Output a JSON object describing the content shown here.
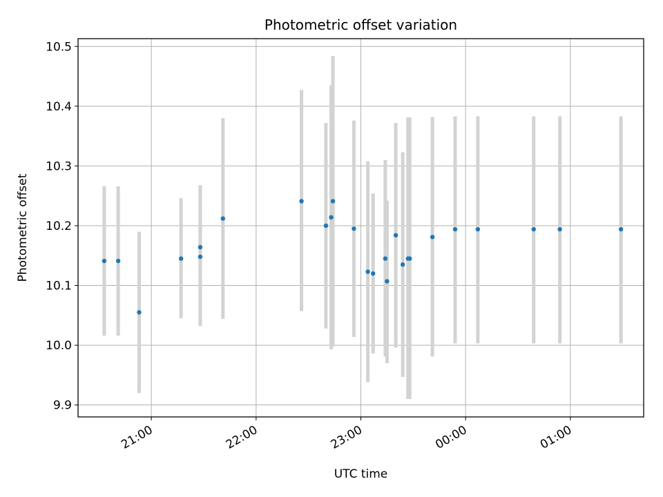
{
  "chart_data": {
    "type": "scatter",
    "title": "Photometric offset variation",
    "xlabel": "UTC time",
    "ylabel": "Photometric offset",
    "x_axis": "time",
    "xlim": [
      "20:18",
      "01:42"
    ],
    "ylim": [
      9.88,
      10.513
    ],
    "grid": true,
    "x_ticks": [
      "21:00",
      "22:00",
      "23:00",
      "00:00",
      "01:00"
    ],
    "y_ticks": [
      "9.9",
      "10.0",
      "10.1",
      "10.2",
      "10.3",
      "10.4",
      "10.5"
    ],
    "y_tick_values": [
      9.9,
      10.0,
      10.1,
      10.2,
      10.3,
      10.4,
      10.5
    ],
    "colors": {
      "points": "#1f77b4",
      "errorbars": "#d3d3d3",
      "grid": "#b0b0b0"
    },
    "series": [
      {
        "points": [
          {
            "x": "20:33",
            "y": 10.141,
            "lo": 10.016,
            "hi": 10.266
          },
          {
            "x": "20:41",
            "y": 10.141,
            "lo": 10.016,
            "hi": 10.266
          },
          {
            "x": "20:53",
            "y": 10.055,
            "lo": 9.92,
            "hi": 10.19
          },
          {
            "x": "21:17",
            "y": 10.145,
            "lo": 10.045,
            "hi": 10.246
          },
          {
            "x": "21:28",
            "y": 10.148,
            "lo": 10.032,
            "hi": 10.264
          },
          {
            "x": "21:28",
            "y": 10.164,
            "lo": 10.04,
            "hi": 10.268
          },
          {
            "x": "21:41",
            "y": 10.212,
            "lo": 10.044,
            "hi": 10.38
          },
          {
            "x": "22:26",
            "y": 10.241,
            "lo": 10.057,
            "hi": 10.427
          },
          {
            "x": "22:40",
            "y": 10.2,
            "lo": 10.028,
            "hi": 10.372
          },
          {
            "x": "22:43",
            "y": 10.214,
            "lo": 9.993,
            "hi": 10.435
          },
          {
            "x": "22:44",
            "y": 10.241,
            "lo": 9.998,
            "hi": 10.484
          },
          {
            "x": "22:56",
            "y": 10.195,
            "lo": 10.014,
            "hi": 10.376
          },
          {
            "x": "23:04",
            "y": 10.123,
            "lo": 9.938,
            "hi": 10.308
          },
          {
            "x": "23:07",
            "y": 10.12,
            "lo": 9.986,
            "hi": 10.254
          },
          {
            "x": "23:14",
            "y": 10.145,
            "lo": 9.981,
            "hi": 10.31
          },
          {
            "x": "23:15",
            "y": 10.107,
            "lo": 9.97,
            "hi": 10.242
          },
          {
            "x": "23:20",
            "y": 10.184,
            "lo": 9.996,
            "hi": 10.372
          },
          {
            "x": "23:24",
            "y": 10.135,
            "lo": 9.947,
            "hi": 10.323
          },
          {
            "x": "23:27",
            "y": 10.145,
            "lo": 9.91,
            "hi": 10.381
          },
          {
            "x": "23:28",
            "y": 10.145,
            "lo": 9.91,
            "hi": 10.381
          },
          {
            "x": "23:41",
            "y": 10.181,
            "lo": 9.981,
            "hi": 10.382
          },
          {
            "x": "23:54",
            "y": 10.194,
            "lo": 10.003,
            "hi": 10.383
          },
          {
            "x": "00:07",
            "y": 10.194,
            "lo": 10.003,
            "hi": 10.383
          },
          {
            "x": "00:39",
            "y": 10.194,
            "lo": 10.003,
            "hi": 10.383
          },
          {
            "x": "00:54",
            "y": 10.194,
            "lo": 10.003,
            "hi": 10.383
          },
          {
            "x": "01:29",
            "y": 10.194,
            "lo": 10.003,
            "hi": 10.383
          }
        ]
      }
    ]
  }
}
